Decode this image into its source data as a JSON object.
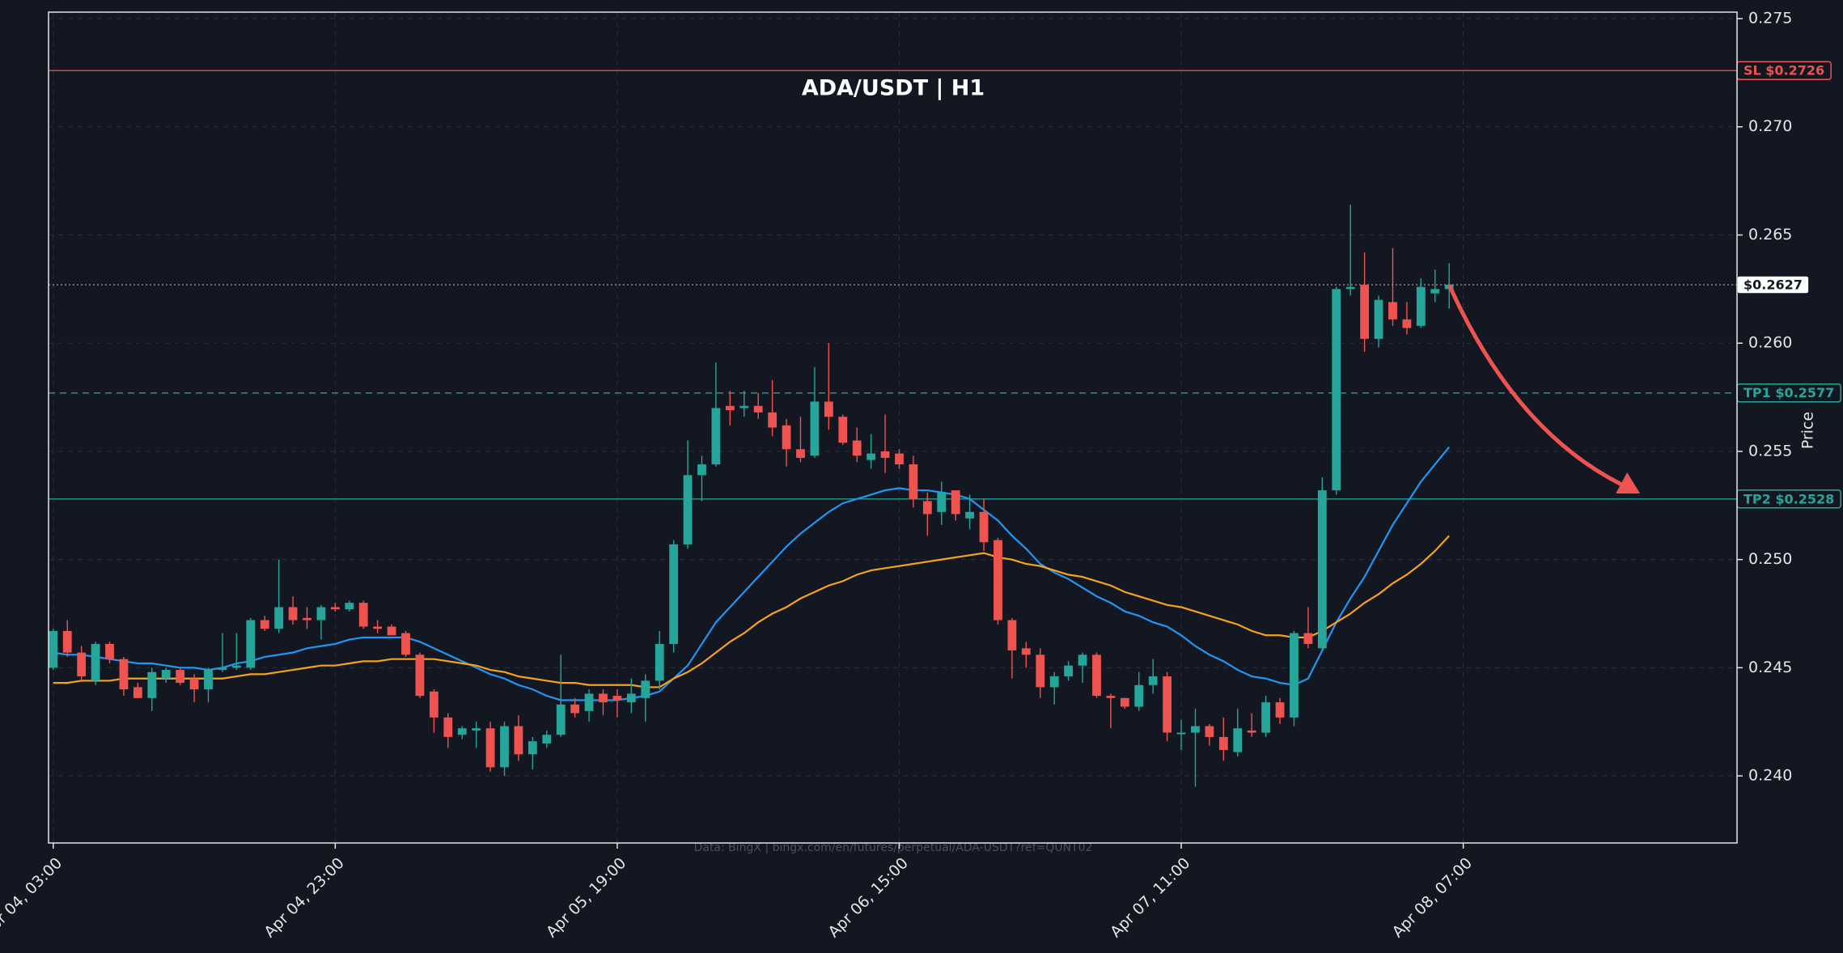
{
  "chart_data": {
    "type": "candlestick",
    "title": "ADA/USDT | H1",
    "ylabel": "Price",
    "source": "Data: BingX | bingx.com/en/futures/perpetual/ADA-USDT?ref=QUNT02",
    "background": "#131722",
    "grid": true,
    "up_color": "#26a69a",
    "down_color": "#ef5350",
    "x": [
      "Apr 04, 03:00",
      "Apr 04, 04:00",
      "Apr 04, 05:00",
      "Apr 04, 06:00",
      "Apr 04, 07:00",
      "Apr 04, 08:00",
      "Apr 04, 09:00",
      "Apr 04, 10:00",
      "Apr 04, 11:00",
      "Apr 04, 12:00",
      "Apr 04, 13:00",
      "Apr 04, 14:00",
      "Apr 04, 15:00",
      "Apr 04, 16:00",
      "Apr 04, 17:00",
      "Apr 04, 18:00",
      "Apr 04, 19:00",
      "Apr 04, 20:00",
      "Apr 04, 21:00",
      "Apr 04, 22:00",
      "Apr 04, 23:00",
      "Apr 05, 00:00",
      "Apr 05, 01:00",
      "Apr 05, 02:00",
      "Apr 05, 03:00",
      "Apr 05, 04:00",
      "Apr 05, 05:00",
      "Apr 05, 06:00",
      "Apr 05, 07:00",
      "Apr 05, 08:00",
      "Apr 05, 09:00",
      "Apr 05, 10:00",
      "Apr 05, 11:00",
      "Apr 05, 12:00",
      "Apr 05, 13:00",
      "Apr 05, 14:00",
      "Apr 05, 15:00",
      "Apr 05, 16:00",
      "Apr 05, 17:00",
      "Apr 05, 18:00",
      "Apr 05, 19:00",
      "Apr 05, 20:00",
      "Apr 05, 21:00",
      "Apr 05, 22:00",
      "Apr 05, 23:00",
      "Apr 06, 00:00",
      "Apr 06, 01:00",
      "Apr 06, 02:00",
      "Apr 06, 03:00",
      "Apr 06, 04:00",
      "Apr 06, 05:00",
      "Apr 06, 06:00",
      "Apr 06, 07:00",
      "Apr 06, 08:00",
      "Apr 06, 09:00",
      "Apr 06, 10:00",
      "Apr 06, 11:00",
      "Apr 06, 12:00",
      "Apr 06, 13:00",
      "Apr 06, 14:00",
      "Apr 06, 15:00",
      "Apr 06, 16:00",
      "Apr 06, 17:00",
      "Apr 06, 18:00",
      "Apr 06, 19:00",
      "Apr 06, 20:00",
      "Apr 06, 21:00",
      "Apr 06, 22:00",
      "Apr 06, 23:00",
      "Apr 07, 00:00",
      "Apr 07, 01:00",
      "Apr 07, 02:00",
      "Apr 07, 03:00",
      "Apr 07, 04:00",
      "Apr 07, 05:00",
      "Apr 07, 06:00",
      "Apr 07, 07:00",
      "Apr 07, 08:00",
      "Apr 07, 09:00",
      "Apr 07, 10:00",
      "Apr 07, 11:00",
      "Apr 07, 12:00",
      "Apr 07, 13:00",
      "Apr 07, 14:00",
      "Apr 07, 15:00",
      "Apr 07, 16:00",
      "Apr 07, 17:00",
      "Apr 07, 18:00",
      "Apr 07, 19:00",
      "Apr 07, 20:00",
      "Apr 07, 21:00",
      "Apr 07, 22:00",
      "Apr 07, 23:00",
      "Apr 08, 00:00",
      "Apr 08, 01:00",
      "Apr 08, 02:00",
      "Apr 08, 03:00",
      "Apr 08, 04:00",
      "Apr 08, 05:00",
      "Apr 08, 06:00"
    ],
    "open": [
      0.245,
      0.2467,
      0.2457,
      0.2444,
      0.2461,
      0.2454,
      0.2441,
      0.2436,
      0.2445,
      0.2449,
      0.2445,
      0.244,
      0.2449,
      0.245,
      0.245,
      0.2472,
      0.2468,
      0.2478,
      0.2473,
      0.2472,
      0.2478,
      0.2477,
      0.248,
      0.2469,
      0.2469,
      0.2466,
      0.2456,
      0.2439,
      0.2427,
      0.2419,
      0.2421,
      0.2422,
      0.2404,
      0.2423,
      0.241,
      0.2415,
      0.2419,
      0.2433,
      0.243,
      0.2438,
      0.2437,
      0.2434,
      0.2436,
      0.2444,
      0.2461,
      0.2507,
      0.2539,
      0.2544,
      0.2571,
      0.257,
      0.2571,
      0.2568,
      0.2562,
      0.2551,
      0.2548,
      0.2573,
      0.2566,
      0.2555,
      0.2546,
      0.255,
      0.2549,
      0.2544,
      0.2527,
      0.2522,
      0.2532,
      0.2519,
      0.2522,
      0.2509,
      0.2472,
      0.2459,
      0.2456,
      0.2441,
      0.2446,
      0.2451,
      0.2456,
      0.2437,
      0.2436,
      0.2432,
      0.2442,
      0.2446,
      0.242,
      0.242,
      0.2423,
      0.2418,
      0.2411,
      0.2421,
      0.242,
      0.2434,
      0.2427,
      0.2466,
      0.2459,
      0.2532,
      0.2625,
      0.2627,
      0.2602,
      0.2619,
      0.2611,
      0.2608,
      0.2623,
      0.2625
    ],
    "high": [
      0.2468,
      0.2472,
      0.246,
      0.2462,
      0.2462,
      0.2455,
      0.2443,
      0.245,
      0.245,
      0.245,
      0.2447,
      0.245,
      0.2466,
      0.2466,
      0.2473,
      0.2474,
      0.25,
      0.2483,
      0.2478,
      0.2479,
      0.248,
      0.2481,
      0.2481,
      0.2472,
      0.247,
      0.2467,
      0.2457,
      0.244,
      0.2429,
      0.2423,
      0.2425,
      0.2425,
      0.2425,
      0.2428,
      0.2418,
      0.2421,
      0.2456,
      0.2436,
      0.244,
      0.244,
      0.244,
      0.2445,
      0.2447,
      0.2467,
      0.2509,
      0.2555,
      0.2548,
      0.2591,
      0.2578,
      0.2578,
      0.2577,
      0.2583,
      0.2565,
      0.2566,
      0.2589,
      0.26,
      0.2567,
      0.2561,
      0.2558,
      0.2567,
      0.2551,
      0.2548,
      0.2531,
      0.2536,
      0.2532,
      0.253,
      0.2528,
      0.251,
      0.2473,
      0.2462,
      0.2459,
      0.2448,
      0.2453,
      0.2457,
      0.2457,
      0.2438,
      0.2436,
      0.2448,
      0.2454,
      0.2448,
      0.2426,
      0.2431,
      0.2424,
      0.2427,
      0.2431,
      0.2429,
      0.2437,
      0.2436,
      0.2467,
      0.2478,
      0.2538,
      0.2626,
      0.2664,
      0.2642,
      0.2622,
      0.2644,
      0.2619,
      0.263,
      0.2634,
      0.2637
    ],
    "low": [
      0.2449,
      0.2455,
      0.2444,
      0.2442,
      0.2452,
      0.2437,
      0.2436,
      0.243,
      0.2443,
      0.2442,
      0.2434,
      0.2434,
      0.2448,
      0.2449,
      0.2449,
      0.2467,
      0.2466,
      0.247,
      0.2468,
      0.2463,
      0.2476,
      0.2476,
      0.2468,
      0.2466,
      0.2465,
      0.2455,
      0.2436,
      0.242,
      0.2413,
      0.2417,
      0.2413,
      0.2402,
      0.24,
      0.2407,
      0.2403,
      0.2413,
      0.2418,
      0.2427,
      0.2425,
      0.2428,
      0.2427,
      0.2429,
      0.2425,
      0.244,
      0.2457,
      0.2505,
      0.2527,
      0.2543,
      0.2562,
      0.2566,
      0.2565,
      0.2557,
      0.2543,
      0.2545,
      0.2547,
      0.256,
      0.2553,
      0.2545,
      0.2542,
      0.254,
      0.2542,
      0.2524,
      0.2511,
      0.2516,
      0.2518,
      0.2514,
      0.2504,
      0.247,
      0.2445,
      0.245,
      0.2436,
      0.2433,
      0.2444,
      0.2443,
      0.2436,
      0.2422,
      0.2431,
      0.243,
      0.2438,
      0.2416,
      0.2412,
      0.2395,
      0.2414,
      0.2407,
      0.2409,
      0.2418,
      0.2418,
      0.2424,
      0.2423,
      0.2459,
      0.2458,
      0.253,
      0.2622,
      0.2596,
      0.2598,
      0.2608,
      0.2604,
      0.2607,
      0.2619,
      0.2616
    ],
    "close": [
      0.2467,
      0.2457,
      0.2446,
      0.2461,
      0.2454,
      0.244,
      0.2436,
      0.2448,
      0.2449,
      0.2443,
      0.244,
      0.2449,
      0.245,
      0.2451,
      0.2472,
      0.2468,
      0.2478,
      0.2472,
      0.2472,
      0.2478,
      0.2477,
      0.248,
      0.2469,
      0.2468,
      0.2465,
      0.2456,
      0.2437,
      0.2427,
      0.2418,
      0.2422,
      0.2422,
      0.2404,
      0.2423,
      0.241,
      0.2416,
      0.2419,
      0.2433,
      0.2429,
      0.2438,
      0.2434,
      0.2435,
      0.2438,
      0.2444,
      0.2461,
      0.2507,
      0.2539,
      0.2544,
      0.257,
      0.2569,
      0.2571,
      0.2568,
      0.2561,
      0.2551,
      0.2547,
      0.2573,
      0.2566,
      0.2554,
      0.2548,
      0.2549,
      0.2547,
      0.2544,
      0.2528,
      0.2521,
      0.2531,
      0.2521,
      0.2522,
      0.2508,
      0.2472,
      0.2458,
      0.2456,
      0.2441,
      0.2446,
      0.2451,
      0.2456,
      0.2437,
      0.2436,
      0.2432,
      0.2442,
      0.2446,
      0.242,
      0.242,
      0.2423,
      0.2418,
      0.2412,
      0.2422,
      0.242,
      0.2434,
      0.2427,
      0.2466,
      0.2461,
      0.2532,
      0.2625,
      0.2626,
      0.2602,
      0.262,
      0.2611,
      0.2607,
      0.2626,
      0.2625,
      0.2627
    ],
    "lines": [
      {
        "color": "#2196f3",
        "values": [
          0.2457,
          0.2456,
          0.2456,
          0.2455,
          0.2454,
          0.2453,
          0.2452,
          0.2452,
          0.2451,
          0.245,
          0.245,
          0.2449,
          0.245,
          0.2452,
          0.2453,
          0.2455,
          0.2456,
          0.2457,
          0.2459,
          0.246,
          0.2461,
          0.2463,
          0.2464,
          0.2464,
          0.2464,
          0.2464,
          0.2462,
          0.2459,
          0.2456,
          0.2453,
          0.245,
          0.2447,
          0.2445,
          0.2442,
          0.244,
          0.2437,
          0.2435,
          0.2435,
          0.2435,
          0.2435,
          0.2435,
          0.2436,
          0.2437,
          0.2439,
          0.2445,
          0.2451,
          0.2461,
          0.2471,
          0.2478,
          0.2485,
          0.2492,
          0.2499,
          0.2506,
          0.2512,
          0.2517,
          0.2522,
          0.2526,
          0.2528,
          0.253,
          0.2532,
          0.2533,
          0.2532,
          0.2532,
          0.2531,
          0.253,
          0.2528,
          0.2523,
          0.2518,
          0.2511,
          0.2505,
          0.2498,
          0.2494,
          0.2491,
          0.2487,
          0.2483,
          0.248,
          0.2476,
          0.2474,
          0.2471,
          0.2469,
          0.2465,
          0.246,
          0.2456,
          0.2453,
          0.2449,
          0.2446,
          0.2445,
          0.2443,
          0.2442,
          0.2445,
          0.2458,
          0.2471,
          0.2482,
          0.2492,
          0.2504,
          0.2516,
          0.2526,
          0.2536,
          0.2544,
          0.2552
        ]
      },
      {
        "color": "#f7a21b",
        "values": [
          0.2443,
          0.2443,
          0.2444,
          0.2444,
          0.2444,
          0.2445,
          0.2445,
          0.2445,
          0.2445,
          0.2445,
          0.2445,
          0.2445,
          0.2445,
          0.2446,
          0.2447,
          0.2447,
          0.2448,
          0.2449,
          0.245,
          0.2451,
          0.2451,
          0.2452,
          0.2453,
          0.2453,
          0.2454,
          0.2454,
          0.2454,
          0.2454,
          0.2453,
          0.2452,
          0.2451,
          0.2449,
          0.2448,
          0.2446,
          0.2445,
          0.2444,
          0.2443,
          0.2443,
          0.2442,
          0.2442,
          0.2442,
          0.2442,
          0.2441,
          0.2441,
          0.2445,
          0.2448,
          0.2452,
          0.2457,
          0.2462,
          0.2466,
          0.2471,
          0.2475,
          0.2478,
          0.2482,
          0.2485,
          0.2488,
          0.249,
          0.2493,
          0.2495,
          0.2496,
          0.2497,
          0.2498,
          0.2499,
          0.25,
          0.2501,
          0.2502,
          0.2503,
          0.2501,
          0.25,
          0.2498,
          0.2497,
          0.2495,
          0.2493,
          0.2492,
          0.249,
          0.2488,
          0.2485,
          0.2483,
          0.2481,
          0.2479,
          0.2478,
          0.2476,
          0.2474,
          0.2472,
          0.247,
          0.2467,
          0.2465,
          0.2465,
          0.2464,
          0.2464,
          0.2467,
          0.2471,
          0.2475,
          0.248,
          0.2484,
          0.2489,
          0.2493,
          0.2498,
          0.2504,
          0.2511
        ]
      }
    ],
    "levels": [
      {
        "value": 0.2726,
        "label": "SL $0.2726",
        "color": "#ef5350",
        "style": "solid"
      },
      {
        "value": 0.2627,
        "label": "$0.2627",
        "color": "#9e9e9e",
        "style": "dotted"
      },
      {
        "value": 0.2577,
        "label": "TP1 $0.2577",
        "color": "#26a69a",
        "style": "dashed"
      },
      {
        "value": 0.2528,
        "label": "TP2 $0.2528",
        "color": "#26a69a",
        "style": "solid"
      }
    ],
    "xlim": [
      "Apr 04, 02:40",
      "Apr 09, 02:25"
    ],
    "xticks": [
      "Apr 04, 03:00",
      "Apr 04, 23:00",
      "Apr 05, 19:00",
      "Apr 06, 15:00",
      "Apr 07, 11:00",
      "Apr 08, 07:00"
    ],
    "ylim": [
      0.2369,
      0.2753
    ],
    "yticks": [
      {
        "value": 0.24,
        "label": "0.240"
      },
      0.245,
      {
        "value": 0.25,
        "label": "0.250"
      },
      0.255,
      {
        "value": 0.26,
        "label": "0.260"
      },
      0.265,
      {
        "value": 0.27,
        "label": "0.270"
      },
      0.275
    ]
  }
}
